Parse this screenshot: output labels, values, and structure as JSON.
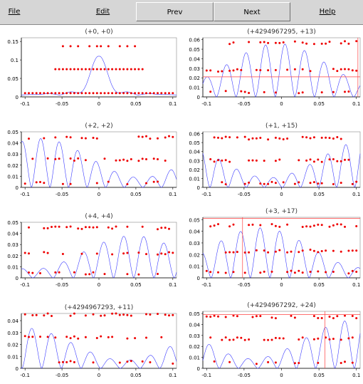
{
  "menu": {
    "file_label": "File",
    "edit_label": "Edit",
    "prev_label": "Prev",
    "next_label": "Next",
    "help_label": "Help"
  },
  "colors": {
    "curve": "#3c3cff",
    "points": "#ee0000",
    "markers": "#ff4040",
    "axis": "#000000",
    "menubar": "#d6d6d6"
  },
  "panels": [
    {
      "title": "(+0, +0)",
      "yticks": [
        "0",
        "0.05",
        "0.1",
        "0.15"
      ],
      "xticks": [
        "-0.1",
        "-0.05",
        "0",
        "0.05",
        "0.1"
      ]
    },
    {
      "title": "(+4294967295, +13)",
      "yticks": [
        "0",
        "0.01",
        "0.02",
        "0.03",
        "0.04",
        "0.05",
        "0.06"
      ],
      "xticks": [
        "-0.1",
        "-0.05",
        "0",
        "0.05",
        "0.1"
      ]
    },
    {
      "title": "(+2, +2)",
      "yticks": [
        "0",
        "0.01",
        "0.02",
        "0.03",
        "0.04",
        "0.05"
      ],
      "xticks": [
        "-0.1",
        "-0.05",
        "0",
        "0.05",
        "0.1"
      ]
    },
    {
      "title": "(+1, +15)",
      "yticks": [
        "0",
        "0.01",
        "0.02",
        "0.03",
        "0.04",
        "0.05",
        "0.06"
      ],
      "xticks": [
        "-0.1",
        "-0.05",
        "0",
        "0.05",
        "0.1"
      ]
    },
    {
      "title": "(+4, +4)",
      "yticks": [
        "0",
        "0.01",
        "0.02",
        "0.03",
        "0.04",
        "0.05"
      ],
      "xticks": [
        "-0.1",
        "-0.05",
        "0",
        "0.05",
        "0.1"
      ]
    },
    {
      "title": "(+3, +17)",
      "yticks": [
        "0",
        "0.01",
        "0.02",
        "0.03",
        "0.04",
        "0.05"
      ],
      "xticks": [
        "-0.1",
        "-0.05",
        "0",
        "0.05",
        "0.1"
      ]
    },
    {
      "title": "(+4294967293, +11)",
      "yticks": [
        "0",
        "0.01",
        "0.02",
        "0.03",
        "0.04"
      ],
      "xticks": [
        "-0.1",
        "-0.05",
        "0",
        "0.05",
        "0.1"
      ]
    },
    {
      "title": "(+4294967292, +24)",
      "yticks": [
        "0",
        "0.01",
        "0.02",
        "0.03",
        "0.04",
        "0.05"
      ],
      "xticks": [
        "-0.1",
        "-0.05",
        "0",
        "0.05",
        "0.1"
      ]
    }
  ],
  "chart_data": [
    {
      "type": "line",
      "title": "(+0, +0)",
      "xlim": [
        -0.105,
        0.105
      ],
      "ylim": [
        0,
        0.16
      ],
      "series": [
        {
          "kind": "curve",
          "shape": "central",
          "peak": 0.105,
          "floor": 0.005,
          "freq": 115
        },
        {
          "kind": "points",
          "levels": [
            0.01,
            0.075,
            0.137
          ],
          "level_mask": [
            [
              1,
              1,
              1,
              1,
              1,
              1,
              1,
              1,
              1,
              1,
              1,
              1,
              1,
              1,
              1,
              1,
              1,
              1,
              1,
              1,
              1,
              1,
              1,
              1,
              1,
              1,
              1,
              1,
              1,
              1,
              1,
              1,
              1,
              1,
              1,
              1,
              1,
              1,
              1,
              1
            ],
            [
              0,
              0,
              0,
              0,
              0,
              0,
              0,
              0,
              1,
              1,
              1,
              1,
              1,
              1,
              1,
              1,
              1,
              1,
              1,
              1,
              1,
              1,
              1,
              1,
              1,
              1,
              1,
              1,
              1,
              1,
              1,
              1,
              0,
              0,
              0,
              0,
              0,
              0,
              0,
              0
            ],
            [
              0,
              0,
              0,
              0,
              0,
              0,
              0,
              0,
              0,
              0,
              1,
              0,
              1,
              0,
              1,
              0,
              0,
              1,
              0,
              1,
              1,
              0,
              1,
              0,
              0,
              1,
              0,
              1,
              0,
              1,
              0,
              0,
              0,
              0,
              0,
              0,
              0,
              0,
              0,
              0
            ]
          ]
        }
      ]
    },
    {
      "type": "line",
      "title": "(+4294967295, +13)",
      "xlim": [
        -0.105,
        0.105
      ],
      "ylim": [
        0,
        0.062
      ],
      "markers": {
        "vline": 0.102,
        "hline": 0.021
      },
      "series": [
        {
          "kind": "curve",
          "shape": "oscillating",
          "peak": 0.056,
          "freq": 120
        },
        {
          "kind": "points",
          "levels": [
            0.005,
            0.028,
            0.057
          ]
        }
      ]
    },
    {
      "type": "line",
      "title": "(+2, +2)",
      "xlim": [
        -0.105,
        0.105
      ],
      "ylim": [
        0,
        0.05
      ],
      "series": [
        {
          "kind": "curve",
          "shape": "oscillating",
          "peak": 0.044,
          "freq": 125
        },
        {
          "kind": "points",
          "levels": [
            0.004,
            0.025,
            0.045
          ]
        }
      ]
    },
    {
      "type": "line",
      "title": "(+1, +15)",
      "xlim": [
        -0.105,
        0.105
      ],
      "ylim": [
        0,
        0.062
      ],
      "series": [
        {
          "kind": "curve",
          "shape": "oscillating",
          "peak": 0.054,
          "freq": 130
        },
        {
          "kind": "points",
          "levels": [
            0.005,
            0.03,
            0.055
          ]
        }
      ]
    },
    {
      "type": "line",
      "title": "(+4, +4)",
      "xlim": [
        -0.105,
        0.105
      ],
      "ylim": [
        0,
        0.05
      ],
      "series": [
        {
          "kind": "curve",
          "shape": "oscillating",
          "peak": 0.038,
          "freq": 115
        },
        {
          "kind": "points",
          "levels": [
            0.004,
            0.022,
            0.045
          ]
        }
      ]
    },
    {
      "type": "line",
      "title": "(+3, +17)",
      "xlim": [
        -0.105,
        0.105
      ],
      "ylim": [
        0,
        0.052
      ],
      "markers": {
        "vline": -0.052,
        "hline": 0.051
      },
      "series": [
        {
          "kind": "curve",
          "shape": "oscillating",
          "peak": 0.043,
          "freq": 120
        },
        {
          "kind": "points",
          "levels": [
            0.005,
            0.023,
            0.045
          ]
        }
      ]
    },
    {
      "type": "line",
      "title": "(+4294967293, +11)",
      "xlim": [
        -0.105,
        0.105
      ],
      "ylim": [
        0,
        0.046
      ],
      "series": [
        {
          "kind": "curve",
          "shape": "oscillating",
          "peak": 0.034,
          "freq": 118
        },
        {
          "kind": "points",
          "levels": [
            0.005,
            0.026,
            0.045
          ]
        }
      ]
    },
    {
      "type": "line",
      "title": "(+4294967292, +24)",
      "xlim": [
        -0.105,
        0.105
      ],
      "ylim": [
        0,
        0.052
      ],
      "markers": {
        "vline": 0.058,
        "hline": 0.049
      },
      "series": [
        {
          "kind": "curve",
          "shape": "oscillating",
          "peak": 0.044,
          "freq": 122
        },
        {
          "kind": "points",
          "levels": [
            0.005,
            0.027,
            0.047
          ]
        }
      ]
    }
  ]
}
